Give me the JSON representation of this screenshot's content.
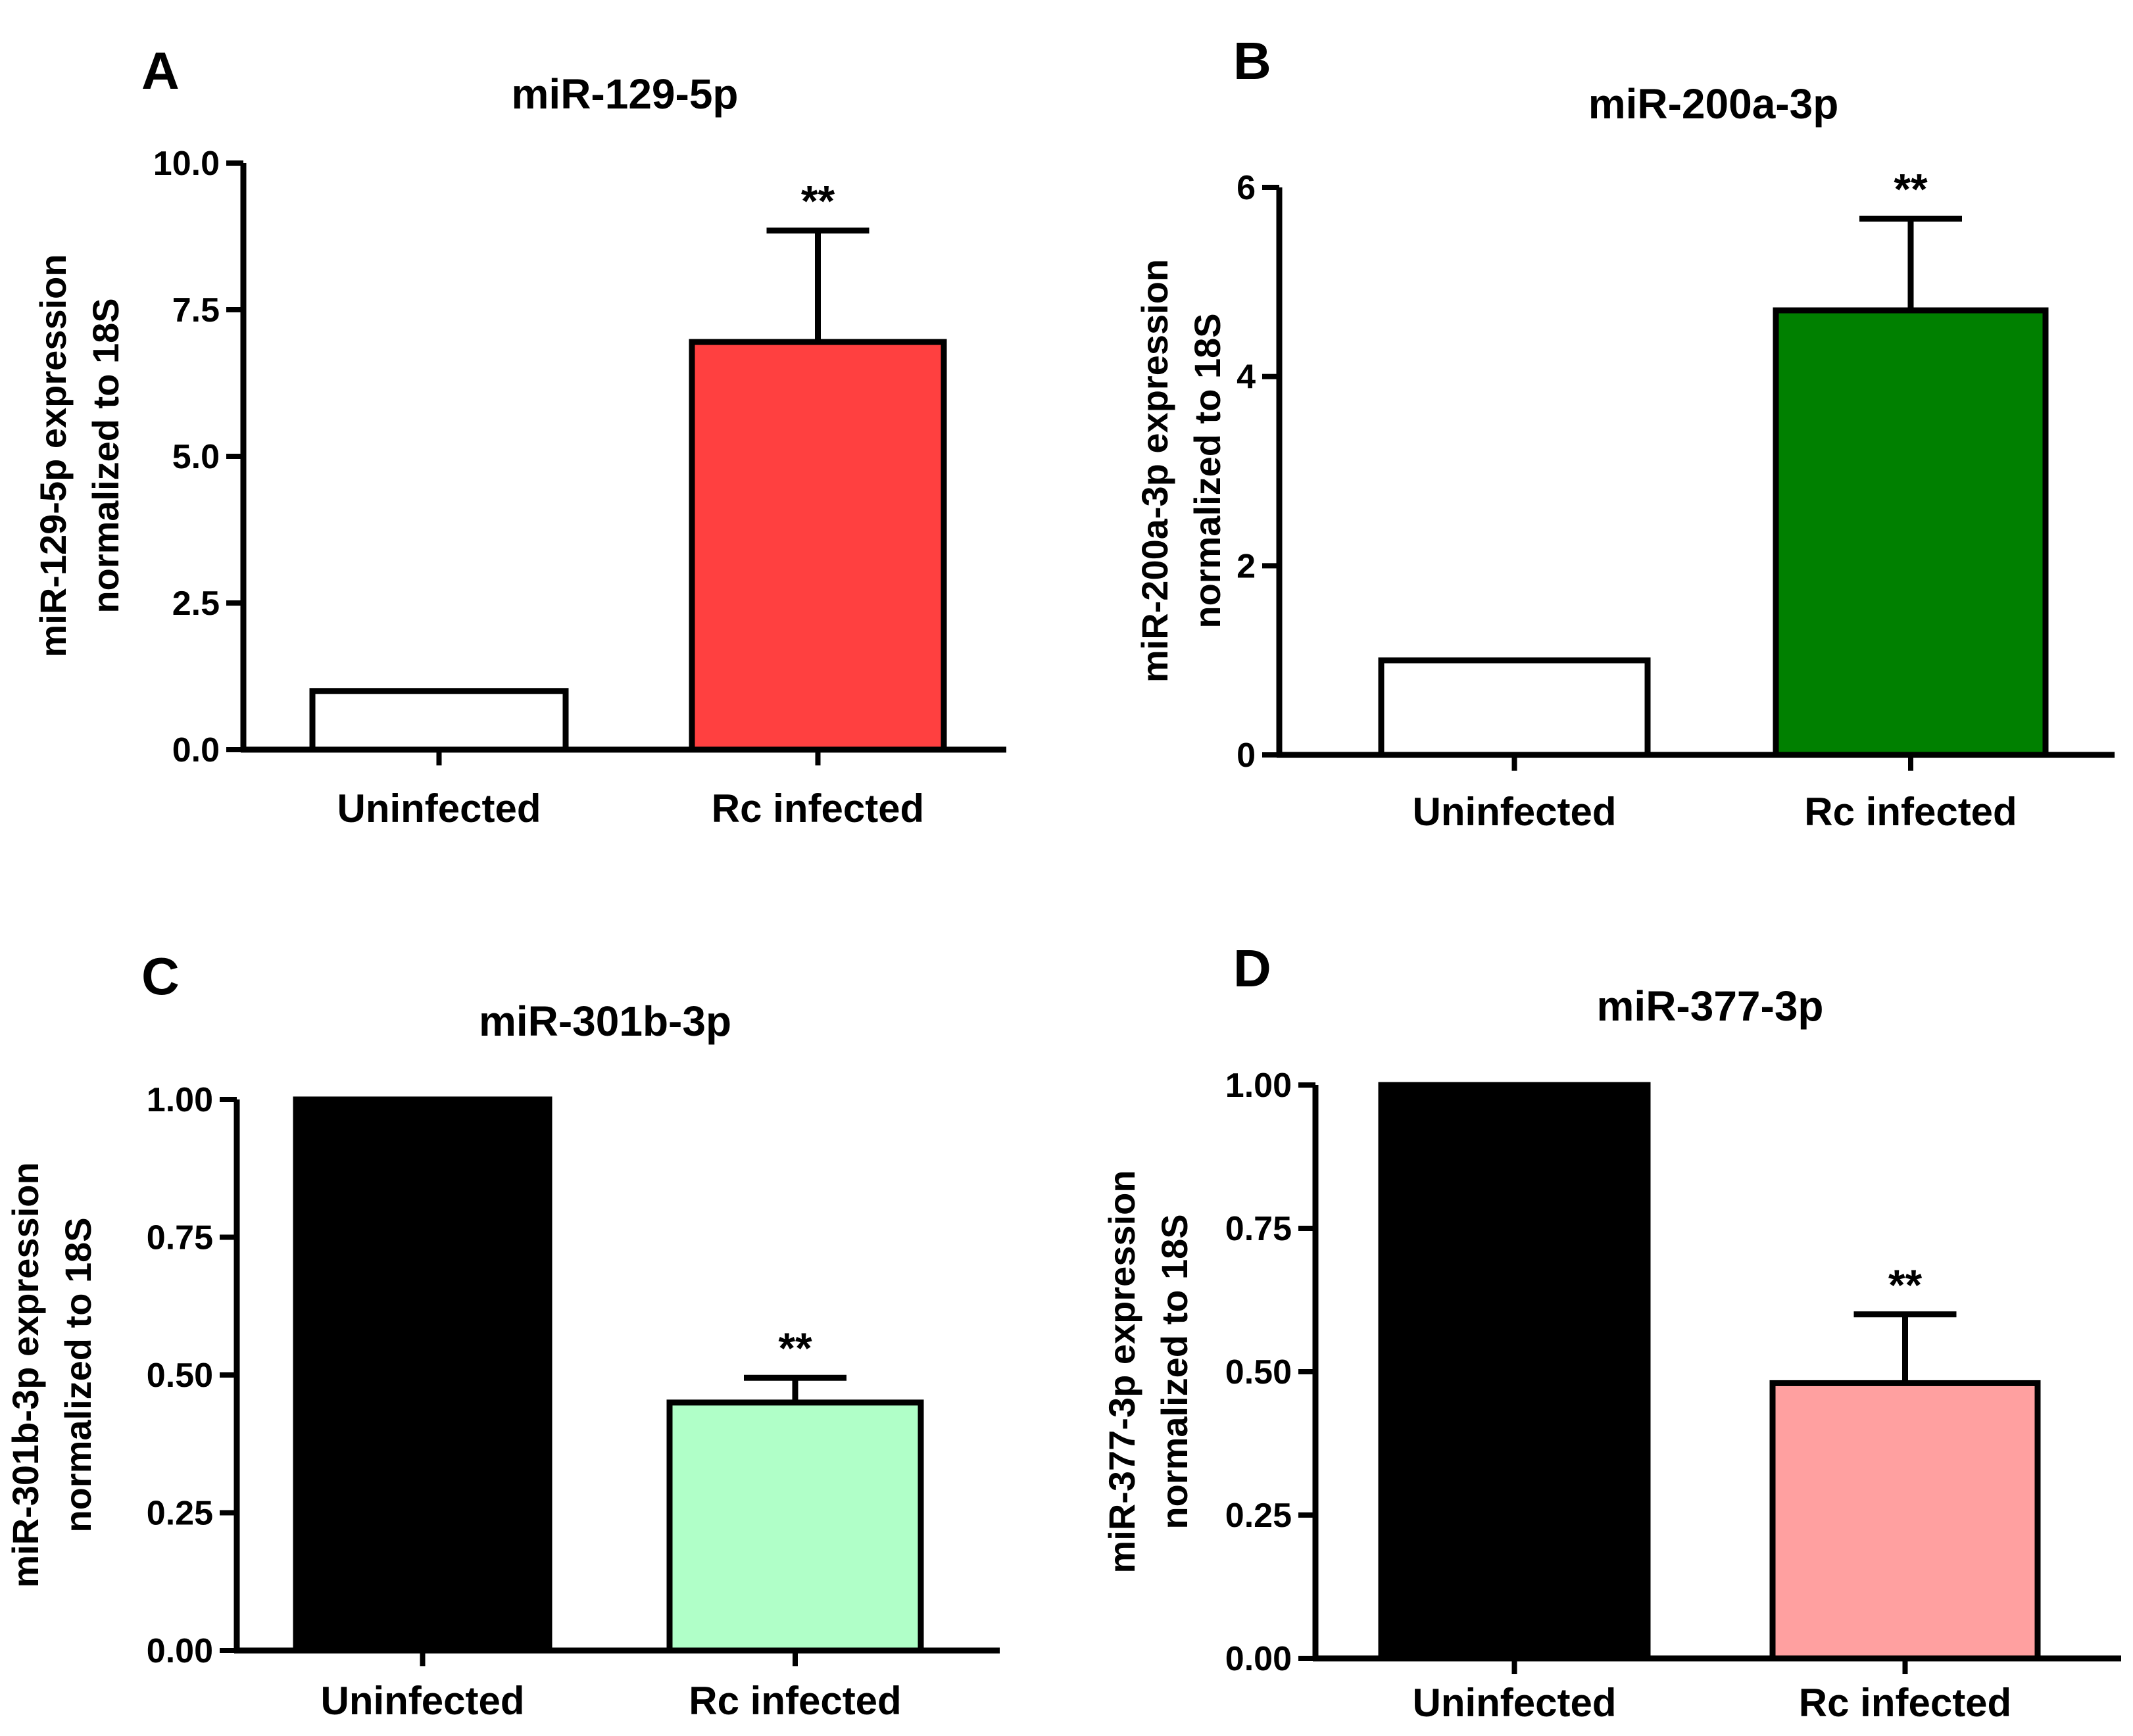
{
  "chart_data": [
    {
      "type": "bar",
      "panel": "A",
      "title": "miR-129-5p",
      "ylabel": "miR-129-5p expression",
      "ylabel2": "normalized to 18S",
      "xlabel": "",
      "categories": [
        "Uninfected",
        "Rc infected"
      ],
      "values": [
        1.0,
        6.95
      ],
      "errors": [
        0.0,
        1.9
      ],
      "colors": [
        "#ffffff",
        "#ff4040"
      ],
      "significance": [
        "",
        "**"
      ],
      "ylim": [
        0,
        10
      ],
      "yticks": [
        0,
        2.5,
        5,
        7.5,
        10
      ],
      "yticklabels": [
        "0.0",
        "2.5",
        "5.0",
        "7.5",
        "10.0"
      ]
    },
    {
      "type": "bar",
      "panel": "B",
      "title": "miR-200a-3p",
      "ylabel": "miR-200a-3p expression",
      "ylabel2": "normalized to 18S",
      "xlabel": "",
      "categories": [
        "Uninfected",
        "Rc infected"
      ],
      "values": [
        1.0,
        4.7
      ],
      "errors": [
        0.0,
        0.97
      ],
      "colors": [
        "#ffffff",
        "#008000"
      ],
      "significance": [
        "",
        "**"
      ],
      "ylim": [
        0,
        6
      ],
      "yticks": [
        0,
        2,
        4,
        6
      ],
      "yticklabels": [
        "0",
        "2",
        "4",
        "6"
      ]
    },
    {
      "type": "bar",
      "panel": "C",
      "title": "miR-301b-3p",
      "ylabel": "miR-301b-3p expression",
      "ylabel2": "normalized to 18S",
      "xlabel": "",
      "categories": [
        "Uninfected",
        "Rc infected"
      ],
      "values": [
        1.0,
        0.45
      ],
      "errors": [
        0.0,
        0.045
      ],
      "colors": [
        "#000000",
        "#b0ffc8"
      ],
      "significance": [
        "",
        "**"
      ],
      "ylim": [
        0,
        1
      ],
      "yticks": [
        0,
        0.25,
        0.5,
        0.75,
        1
      ],
      "yticklabels": [
        "0.00",
        "0.25",
        "0.50",
        "0.75",
        "1.00"
      ]
    },
    {
      "type": "bar",
      "panel": "D",
      "title": "miR-377-3p",
      "ylabel": "miR-377-3p expression",
      "ylabel2": "normalized to 18S",
      "xlabel": "",
      "categories": [
        "Uninfected",
        "Rc infected"
      ],
      "values": [
        1.0,
        0.48
      ],
      "errors": [
        0.0,
        0.12
      ],
      "colors": [
        "#000000",
        "#ffa0a0"
      ],
      "significance": [
        "",
        "**"
      ],
      "ylim": [
        0,
        1
      ],
      "yticks": [
        0,
        0.25,
        0.5,
        0.75,
        1
      ],
      "yticklabels": [
        "0.00",
        "0.25",
        "0.50",
        "0.75",
        "1.00"
      ]
    }
  ]
}
